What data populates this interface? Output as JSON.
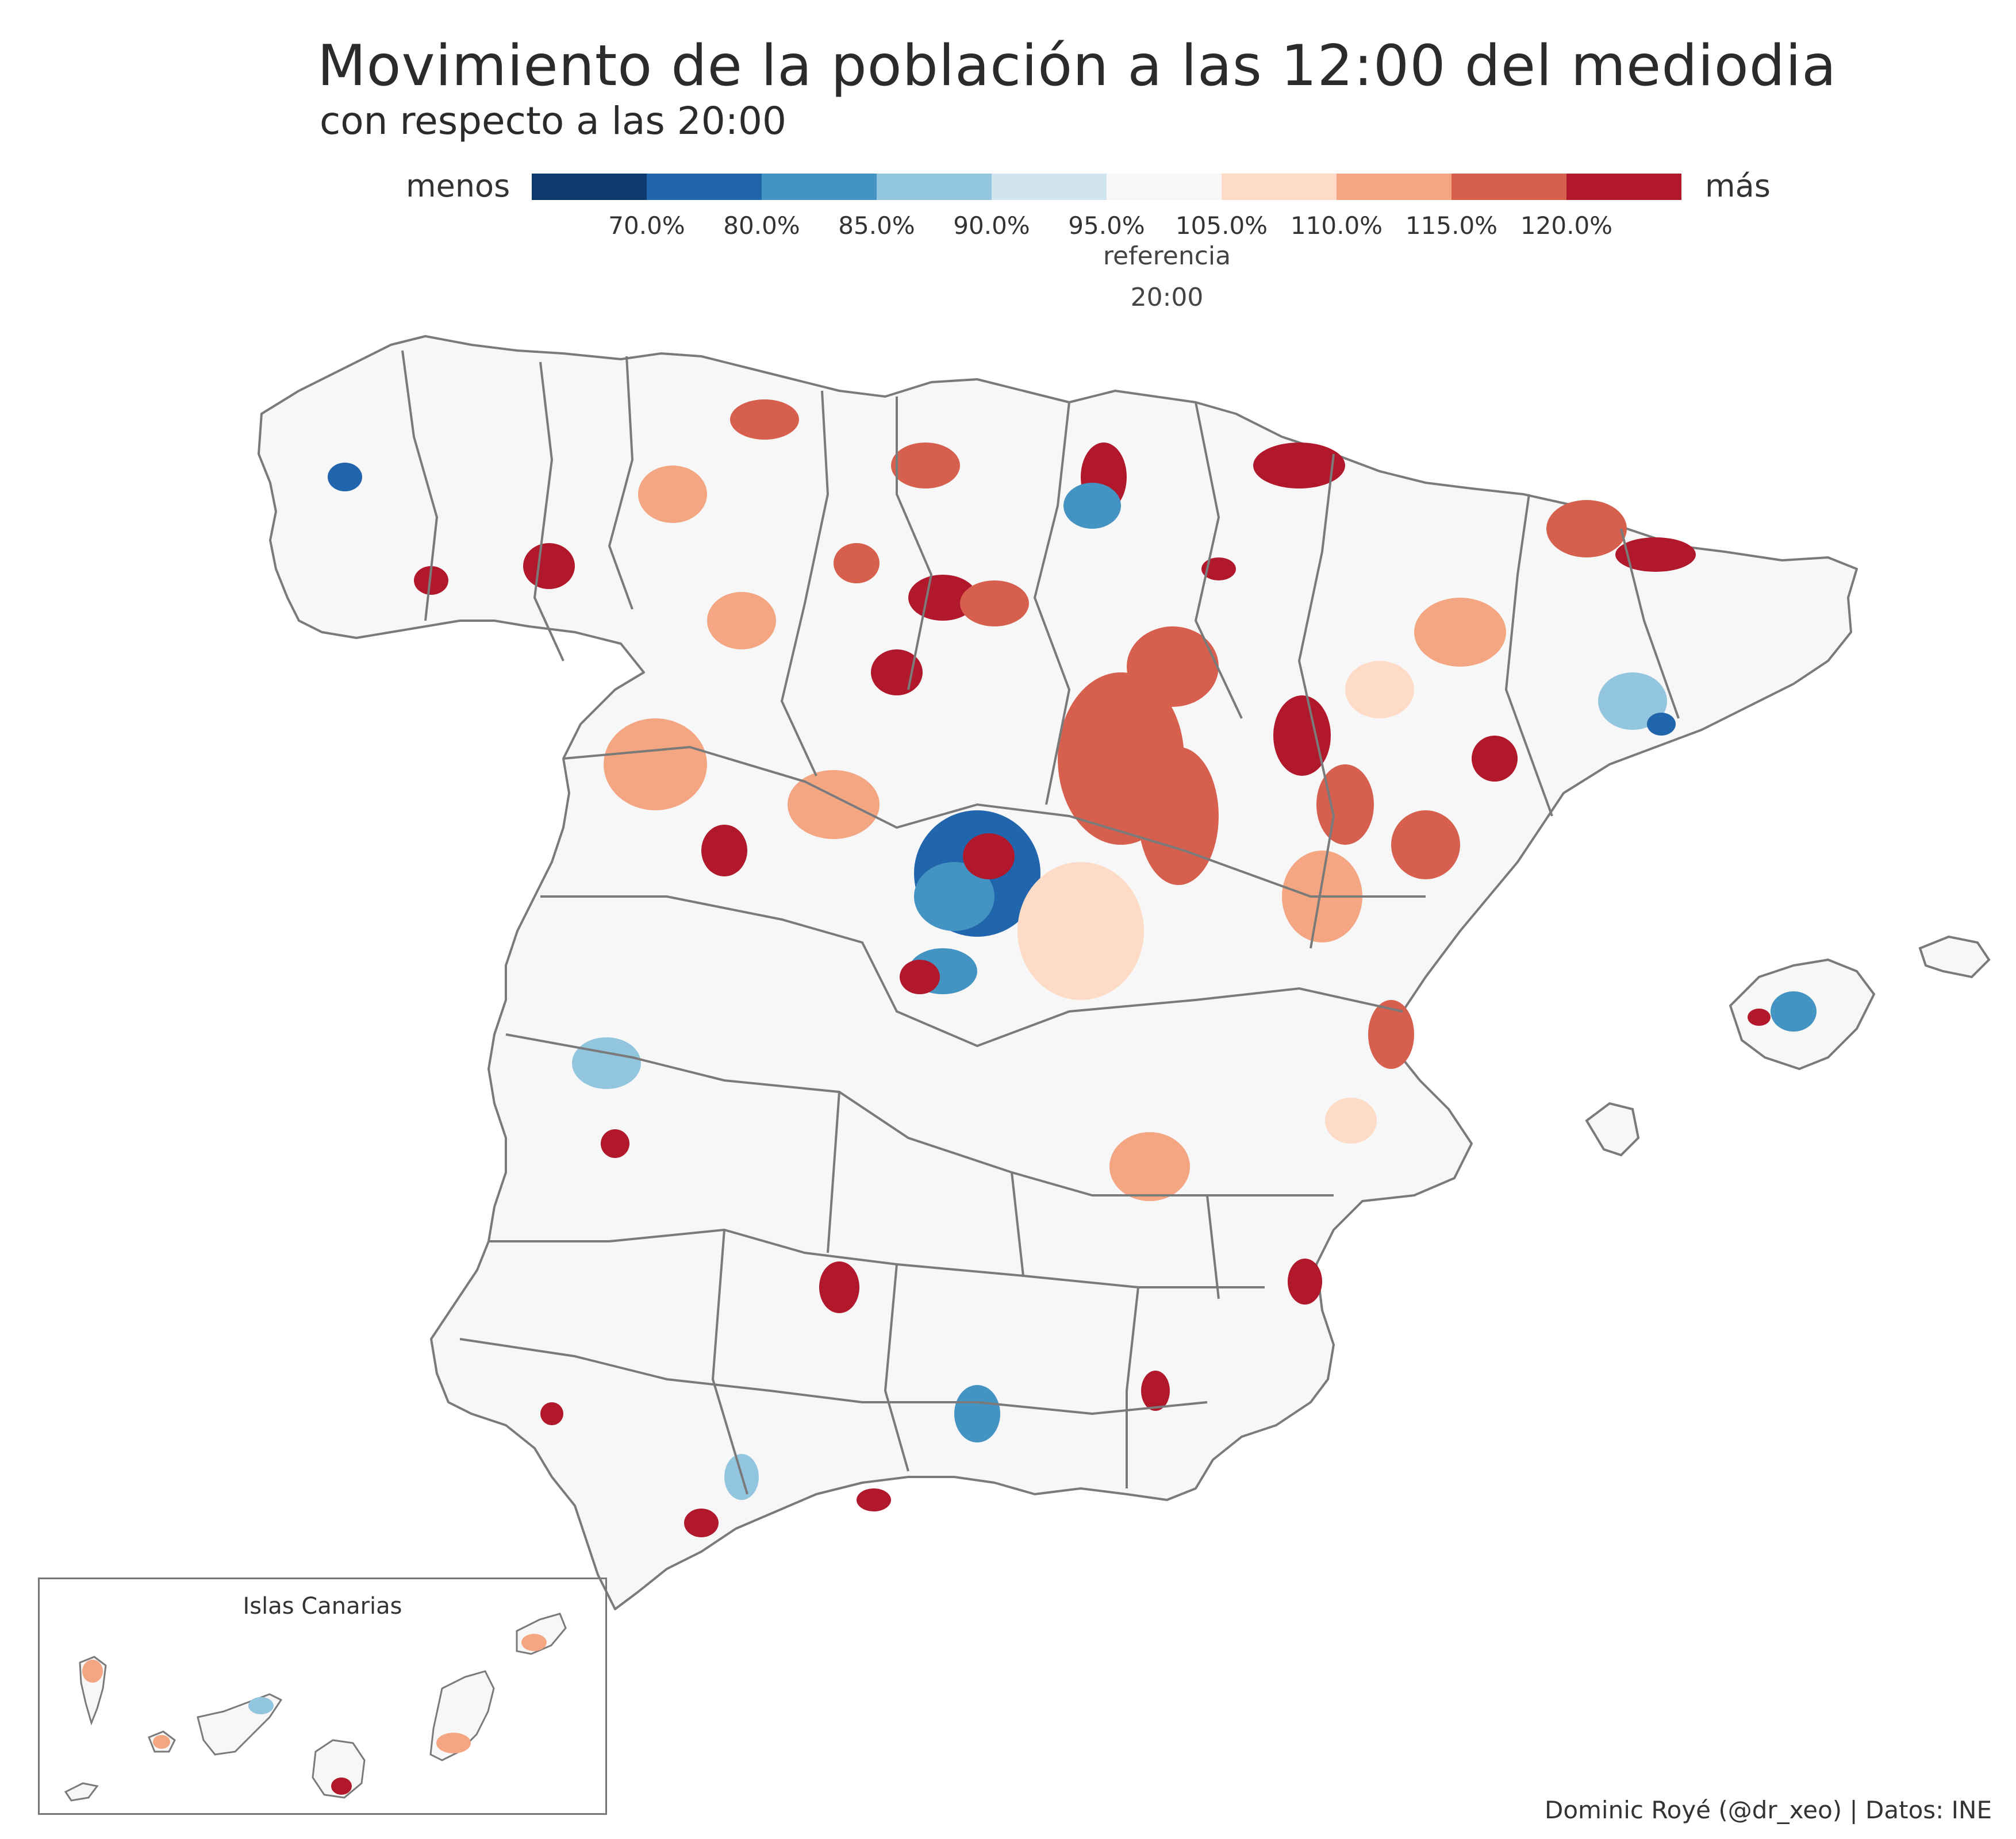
{
  "title": "Movimiento de la población a las 12:00 del mediodia",
  "subtitle": "con respecto a las 20:00",
  "legend": {
    "low_label": "menos",
    "high_label": "más",
    "colors": [
      "#0d3a6e",
      "#2166ac",
      "#4393c3",
      "#92c5de",
      "#d1e5f0",
      "#f7f7f7",
      "#fddbc7",
      "#f4a582",
      "#d6604d",
      "#b2182b"
    ],
    "ticks": [
      "70.0%",
      "80.0%",
      "85.0%",
      "90.0%",
      "95.0%",
      "105.0%",
      "110.0%",
      "115.0%",
      "120.0%"
    ],
    "reference_label": "referencia",
    "reference_time": "20:00"
  },
  "inset": {
    "label": "Islas Canarias"
  },
  "credit": "Dominic Royé (@dr_xeo) | Datos: INE",
  "map_colors": {
    "background": "#f7f7f7",
    "border": "#7a7a7a"
  }
}
